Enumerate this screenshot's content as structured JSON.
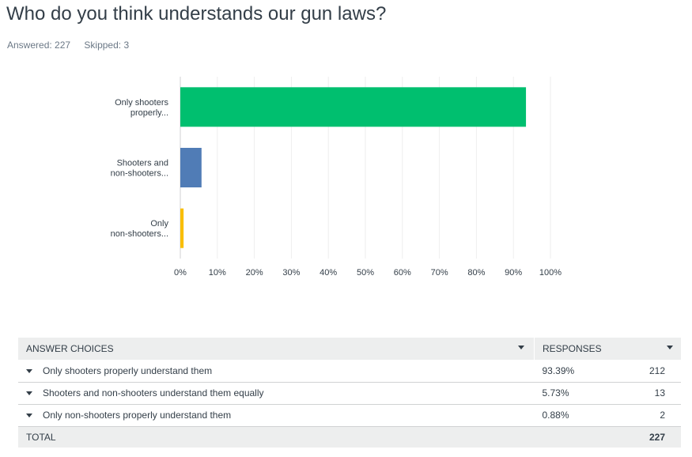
{
  "question": {
    "title": "Who do you think understands our gun laws?",
    "answered": "Answered: 227",
    "skipped": "Skipped: 3"
  },
  "chart_data": {
    "type": "bar",
    "orientation": "horizontal",
    "categories": [
      [
        "Only shooters",
        "properly..."
      ],
      [
        "Shooters and",
        "non-shooters..."
      ],
      [
        "Only",
        "non-shooters..."
      ]
    ],
    "values": [
      93.39,
      5.73,
      0.88
    ],
    "colors": [
      "#00bf6f",
      "#507cb6",
      "#f9be00"
    ],
    "xlim": [
      0,
      100
    ],
    "ticks": [
      "0%",
      "10%",
      "20%",
      "30%",
      "40%",
      "50%",
      "60%",
      "70%",
      "80%",
      "90%",
      "100%"
    ],
    "grid": true,
    "gridColor": "#eeeeee"
  },
  "table": {
    "header": {
      "choices": "Answer Choices",
      "responses": "Responses"
    },
    "rows": [
      {
        "choice": "Only shooters properly understand them",
        "percent": "93.39%",
        "count": "212"
      },
      {
        "choice": "Shooters and non-shooters understand them equally",
        "percent": "5.73%",
        "count": "13"
      },
      {
        "choice": "Only non-shooters properly understand them",
        "percent": "0.88%",
        "count": "2"
      }
    ],
    "total_label": "Total",
    "total_count": "227"
  }
}
